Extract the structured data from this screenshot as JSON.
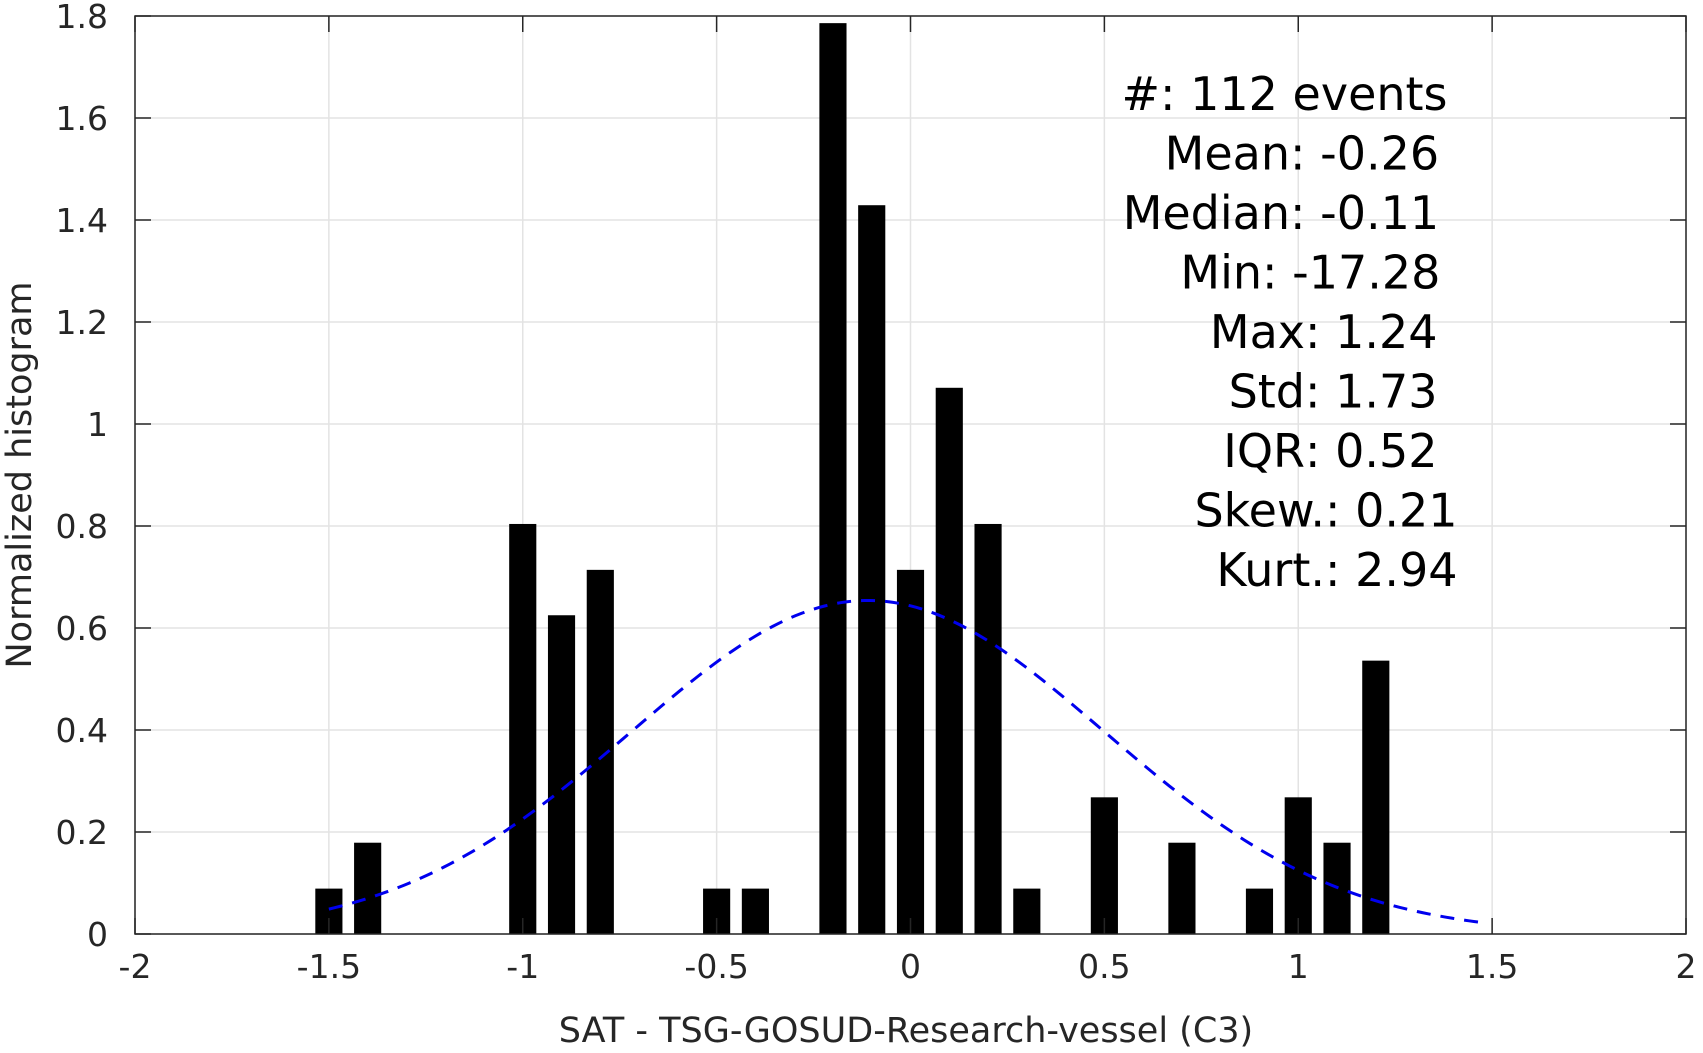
{
  "chart_data": {
    "type": "bar",
    "xlabel": "SAT - TSG-GOSUD-Research-vessel (C3)",
    "ylabel": "Normalized histogram",
    "xlim": [
      -2,
      2
    ],
    "ylim": [
      0,
      1.8
    ],
    "x_ticks": [
      "-2",
      "-1.5",
      "-1",
      "-0.5",
      "0",
      "0.5",
      "1",
      "1.5",
      "2"
    ],
    "y_ticks": [
      "0",
      "0.2",
      "0.4",
      "0.6",
      "0.8",
      "1",
      "1.2",
      "1.4",
      "1.6",
      "1.8"
    ],
    "grid": true,
    "bar_color": "#000000",
    "bin_width": 0.1,
    "bars": [
      {
        "x": -1.5,
        "value": 0.089
      },
      {
        "x": -1.4,
        "value": 0.179
      },
      {
        "x": -1.0,
        "value": 0.804
      },
      {
        "x": -0.9,
        "value": 0.625
      },
      {
        "x": -0.8,
        "value": 0.714
      },
      {
        "x": -0.5,
        "value": 0.089
      },
      {
        "x": -0.4,
        "value": 0.089
      },
      {
        "x": -0.2,
        "value": 1.786
      },
      {
        "x": -0.1,
        "value": 1.429
      },
      {
        "x": 0.0,
        "value": 0.714
      },
      {
        "x": 0.1,
        "value": 1.071
      },
      {
        "x": 0.2,
        "value": 0.804
      },
      {
        "x": 0.3,
        "value": 0.089
      },
      {
        "x": 0.5,
        "value": 0.268
      },
      {
        "x": 0.7,
        "value": 0.179
      },
      {
        "x": 0.9,
        "value": 0.089
      },
      {
        "x": 1.0,
        "value": 0.268
      },
      {
        "x": 1.1,
        "value": 0.179
      },
      {
        "x": 1.2,
        "value": 0.536
      }
    ],
    "fit_curve": {
      "type": "normal",
      "mean": -0.11,
      "std": 0.61,
      "x_range": [
        -1.5,
        1.47
      ],
      "color": "#0000ee",
      "style": "dashed"
    },
    "stats": [
      "#  : 112 events",
      "Mean : -0.26",
      "Median : -0.11",
      "Min : -17.28",
      "Max : 1.24",
      "Std : 1.73",
      "IQR : 0.52",
      "Skew. : 0.21",
      "Kurt. : 2.94"
    ]
  }
}
